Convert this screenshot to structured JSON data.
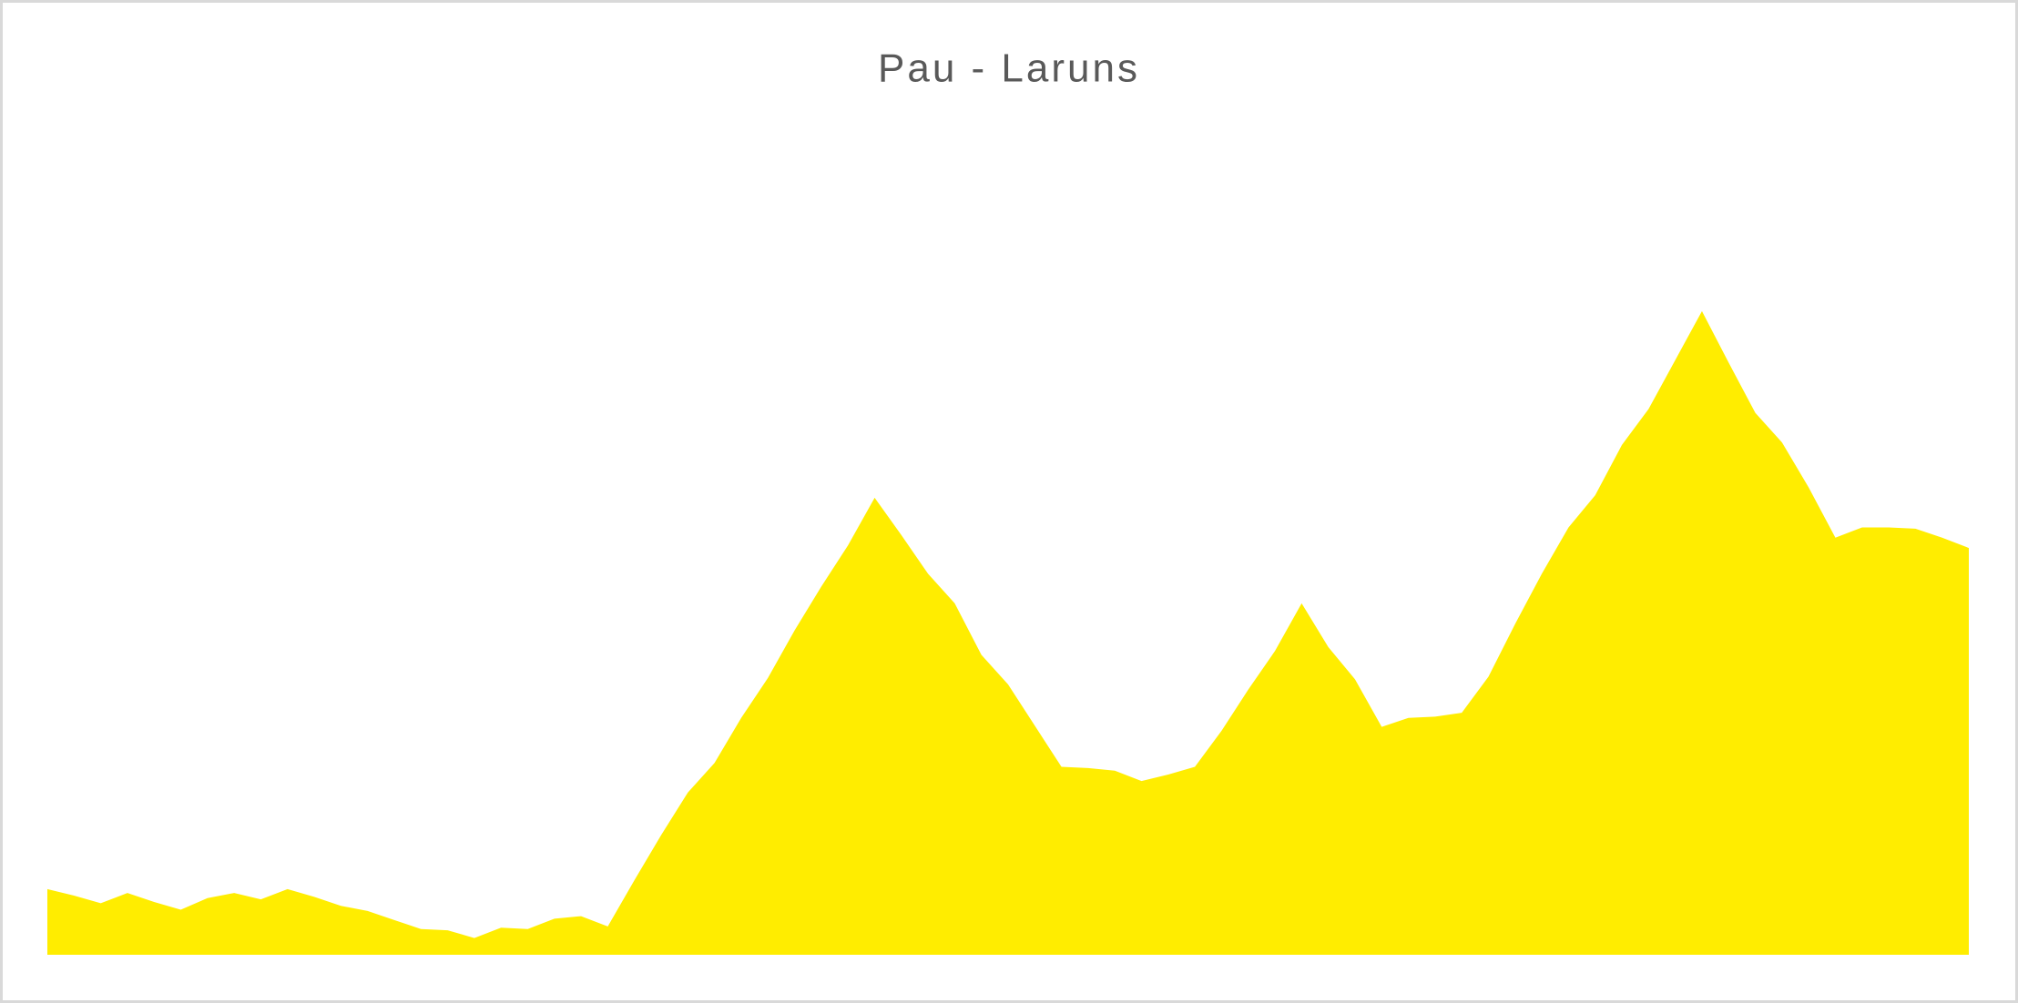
{
  "chart_data": {
    "type": "area",
    "title": "Pau - Laruns",
    "color": "#ffed00",
    "categories": [
      null,
      null,
      null,
      null,
      null,
      null,
      null,
      null,
      null,
      null,
      null,
      null,
      null,
      null,
      null,
      null,
      null,
      null,
      null,
      null,
      null,
      null,
      null,
      null,
      null,
      null,
      null,
      null,
      null,
      null,
      null,
      null,
      null,
      null,
      null,
      null,
      null,
      null,
      null,
      null,
      null,
      null,
      null,
      null,
      null,
      null,
      null,
      null,
      null,
      null,
      null,
      null,
      null,
      null,
      null,
      null,
      null,
      null,
      null,
      null,
      null,
      null,
      null,
      null,
      null,
      null,
      null,
      null,
      null,
      null,
      null,
      null,
      null
    ],
    "values": [
      51,
      46,
      40,
      48,
      41,
      35,
      44,
      48,
      43,
      51,
      45,
      38,
      34,
      27,
      20,
      19,
      13,
      21,
      20,
      28,
      30,
      22,
      58,
      93,
      126,
      149,
      184,
      215,
      252,
      286,
      318,
      355,
      326,
      296,
      273,
      233,
      210,
      178,
      146,
      145,
      143,
      135,
      140,
      146,
      174,
      206,
      236,
      273,
      239,
      214,
      177,
      184,
      185,
      188,
      216,
      257,
      296,
      332,
      357,
      396,
      424,
      462,
      500,
      460,
      421,
      398,
      363,
      324,
      332,
      332,
      331,
      324,
      316
    ],
    "ylim": [
      0,
      642
    ],
    "grid": false
  }
}
